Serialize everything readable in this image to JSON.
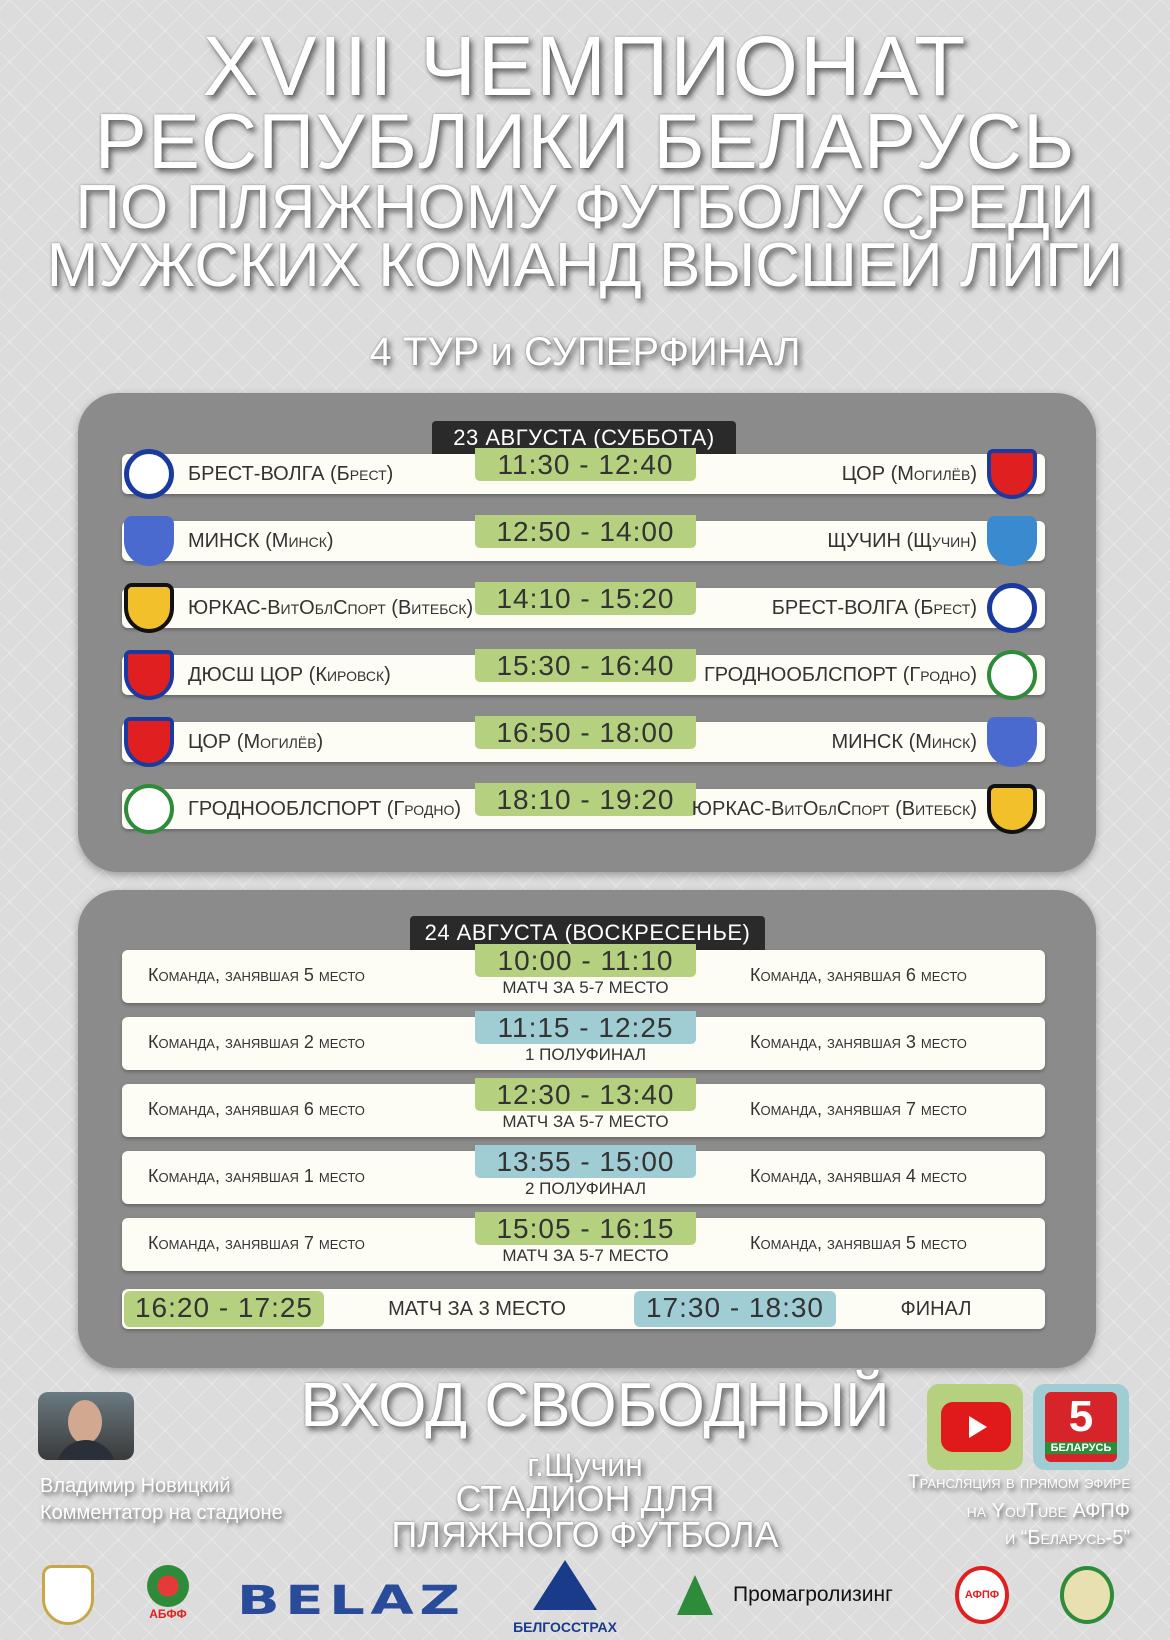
{
  "title": {
    "line1": "XVIII ЧЕМПИОНАТ",
    "line2": "РЕСПУБЛИКИ БЕЛАРУСЬ",
    "line3": "ПО ПЛЯЖНОМУ ФУТБОЛУ СРЕДИ",
    "line4": "МУЖСКИХ КОМАНД ВЫСШЕЙ ЛИГИ"
  },
  "subtitle": "4 ТУР и СУПЕРФИНАЛ",
  "day1": {
    "header": "23 АВГУСТА (СУББОТА)",
    "matches": [
      {
        "home": "БРЕСТ-ВОЛГА (Брест)",
        "time": "11:30 - 12:40",
        "away": "ЦОР (Могилёв)"
      },
      {
        "home": "МИНСК (Минск)",
        "time": "12:50 - 14:00",
        "away": "ЩУЧИН (Щучин)"
      },
      {
        "home": "ЮРКАС-ВитОблСпорт (Витебск)",
        "time": "14:10 - 15:20",
        "away": "БРЕСТ-ВОЛГА (Брест)"
      },
      {
        "home": "ДЮСШ ЦОР (Кировск)",
        "time": "15:30 - 16:40",
        "away": "ГРОДНООБЛСПОРТ (Гродно)"
      },
      {
        "home": "ЦОР (Могилёв)",
        "time": "16:50 - 18:00",
        "away": "МИНСК (Минск)"
      },
      {
        "home": "ГРОДНООБЛСПОРТ (Гродно)",
        "time": "18:10 - 19:20",
        "away": "ЮРКАС-ВитОблСпорт (Витебск)"
      }
    ]
  },
  "day2": {
    "header": "24 АВГУСТА (ВОСКРЕСЕНЬЕ)",
    "matches": [
      {
        "home": "Команда, занявшая 5 место",
        "time": "10:00 - 11:10",
        "label": "МАТЧ ЗА 5-7 МЕСТО",
        "away": "Команда, занявшая 6 место"
      },
      {
        "home": "Команда, занявшая 2 место",
        "time": "11:15 - 12:25",
        "label": "1 ПОЛУФИНАЛ",
        "away": "Команда, занявшая 3 место"
      },
      {
        "home": "Команда, занявшая 6 место",
        "time": "12:30 - 13:40",
        "label": "МАТЧ ЗА 5-7 МЕСТО",
        "away": "Команда, занявшая 7 место"
      },
      {
        "home": "Команда, занявшая 1 место",
        "time": "13:55 - 15:00",
        "label": "2 ПОЛУФИНАЛ",
        "away": "Команда, занявшая 4 место"
      },
      {
        "home": "Команда, занявшая 7 место",
        "time": "15:05 - 16:15",
        "label": "МАТЧ ЗА 5-7 МЕСТО",
        "away": "Команда, занявшая 5 место"
      }
    ],
    "final_row": {
      "time1": "16:20 - 17:25",
      "label1": "МАТЧ ЗА 3 МЕСТО",
      "time2": "17:30 - 18:30",
      "label2": "ФИНАЛ"
    }
  },
  "colors": {
    "green": "#b5d07e",
    "blue": "#9fcdd3",
    "panel": "#8b8b8b"
  },
  "free_entry": "ВХОД СВОБОДНЫЙ",
  "venue": {
    "city": "г.Щучин",
    "line1": "СТАДИОН ДЛЯ",
    "line2": "ПЛЯЖНОГО ФУТБОЛА"
  },
  "commentator": {
    "name": "Владимир Новицкий",
    "role": "Комментатор на стадионе"
  },
  "broadcast": {
    "line1": "Трансляция в прямом эфире",
    "line2": "на YouTube АФПФ",
    "line3": "и “Беларусь-5”",
    "tv_logo_number": "5",
    "tv_logo_text": "БЕЛАРУСЬ"
  },
  "sponsors": {
    "belaz": "BELAZ",
    "belgosstrakh": "БЕЛГОССТРАХ",
    "promagro": "Промагролизинг",
    "abff": "АБФФ",
    "afpf": "АФПФ"
  }
}
